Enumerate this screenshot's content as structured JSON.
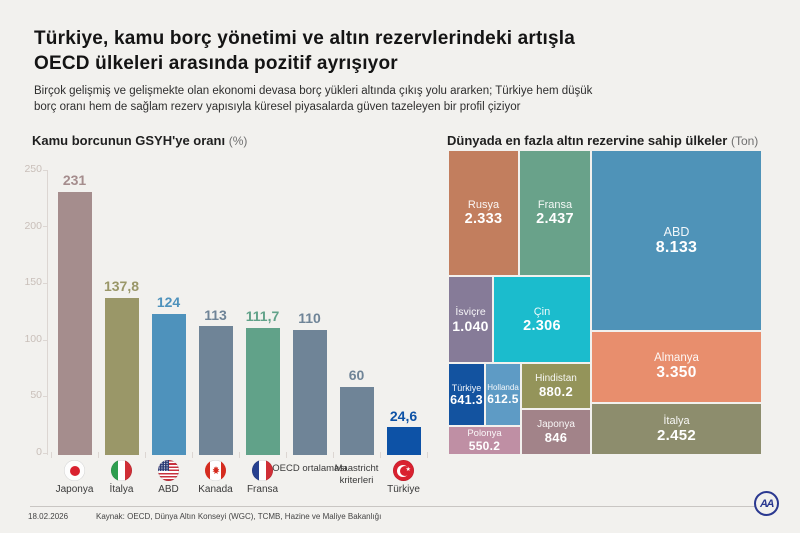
{
  "header": {
    "title_line1": "Türkiye, kamu borç yönetimi ve altın rezervlerindeki artışla",
    "title_line2": "OECD ülkeleri arasında pozitif ayrışıyor",
    "subtitle_line1": "Birçok gelişmiş ve gelişmekte olan ekonomi devasa borç yükleri altında çıkış yolu ararken; Türkiye hem düşük",
    "subtitle_line2": "borç oranı hem de sağlam rezerv yapısıyla küresel piyasalarda güven tazeleyen bir profil çiziyor"
  },
  "colors": {
    "background": "#f2f1ee",
    "axis": "#dcd6d2",
    "tick_label": "#c9bfb9",
    "divider": "#c9c6c3",
    "logo_blue": "#2b3990"
  },
  "chart_data": [
    {
      "type": "bar",
      "title": "Kamu borcunun GSYH'ye oranı",
      "unit_label": "(%)",
      "categories": [
        "Japonya",
        "İtalya",
        "ABD",
        "Kanada",
        "Fransa",
        "OECD ortalaması",
        "Maastricht kriterleri",
        "Türkiye"
      ],
      "values": [
        231,
        137.8,
        124,
        113,
        111.7,
        110,
        60,
        24.6
      ],
      "display_values": [
        "231",
        "137,8",
        "124",
        "113",
        "111,7",
        "110",
        "60",
        "24,6"
      ],
      "bar_colors": [
        "#a58d8d",
        "#9a9768",
        "#4e92bc",
        "#6f8497",
        "#61a289",
        "#6f8497",
        "#6f8497",
        "#0d52a6"
      ],
      "flags": [
        "japan",
        "italy",
        "usa",
        "canada",
        "france",
        null,
        null,
        "turkey"
      ],
      "ylim": [
        0,
        250
      ],
      "y_ticks": [
        "250",
        "200",
        "150",
        "100",
        "50",
        "0"
      ],
      "grid": false,
      "legend": false,
      "value_label_position": "above-bar"
    },
    {
      "type": "treemap",
      "title": "Dünyada en fazla altın rezervine sahip ülkeler",
      "unit_label": "(Ton)",
      "items": [
        {
          "name": "ABD",
          "display": "8.133",
          "value": 8133,
          "color": "#4f93b8"
        },
        {
          "name": "Almanya",
          "display": "3.350",
          "value": 3350,
          "color": "#e88e6d"
        },
        {
          "name": "İtalya",
          "display": "2.452",
          "value": 2452,
          "color": "#8d8d6d"
        },
        {
          "name": "Fransa",
          "display": "2.437",
          "value": 2437,
          "color": "#69a28a"
        },
        {
          "name": "Rusya",
          "display": "2.333",
          "value": 2333,
          "color": "#c27e5e"
        },
        {
          "name": "Çin",
          "display": "2.306",
          "value": 2306,
          "color": "#1bbccd"
        },
        {
          "name": "İsviçre",
          "display": "1.040",
          "value": 1040,
          "color": "#867b98"
        },
        {
          "name": "Hindistan",
          "display": "880.2",
          "value": 880.2,
          "color": "#94945a"
        },
        {
          "name": "Japonya",
          "display": "846",
          "value": 846,
          "color": "#a28389"
        },
        {
          "name": "Türkiye",
          "display": "641.3",
          "value": 641.3,
          "color": "#1353a0"
        },
        {
          "name": "Hollanda",
          "display": "612.5",
          "value": 612.5,
          "color": "#5e9bc5"
        },
        {
          "name": "Polonya",
          "display": "550.2",
          "value": 550.2,
          "color": "#bf8fa4"
        }
      ]
    }
  ],
  "footer": {
    "date": "18.02.2026",
    "source": "Kaynak: OECD, Dünya Altın Konseyi (WGC), TCMB, Hazine ve Maliye Bakanlığı",
    "logo_text": "AA"
  }
}
